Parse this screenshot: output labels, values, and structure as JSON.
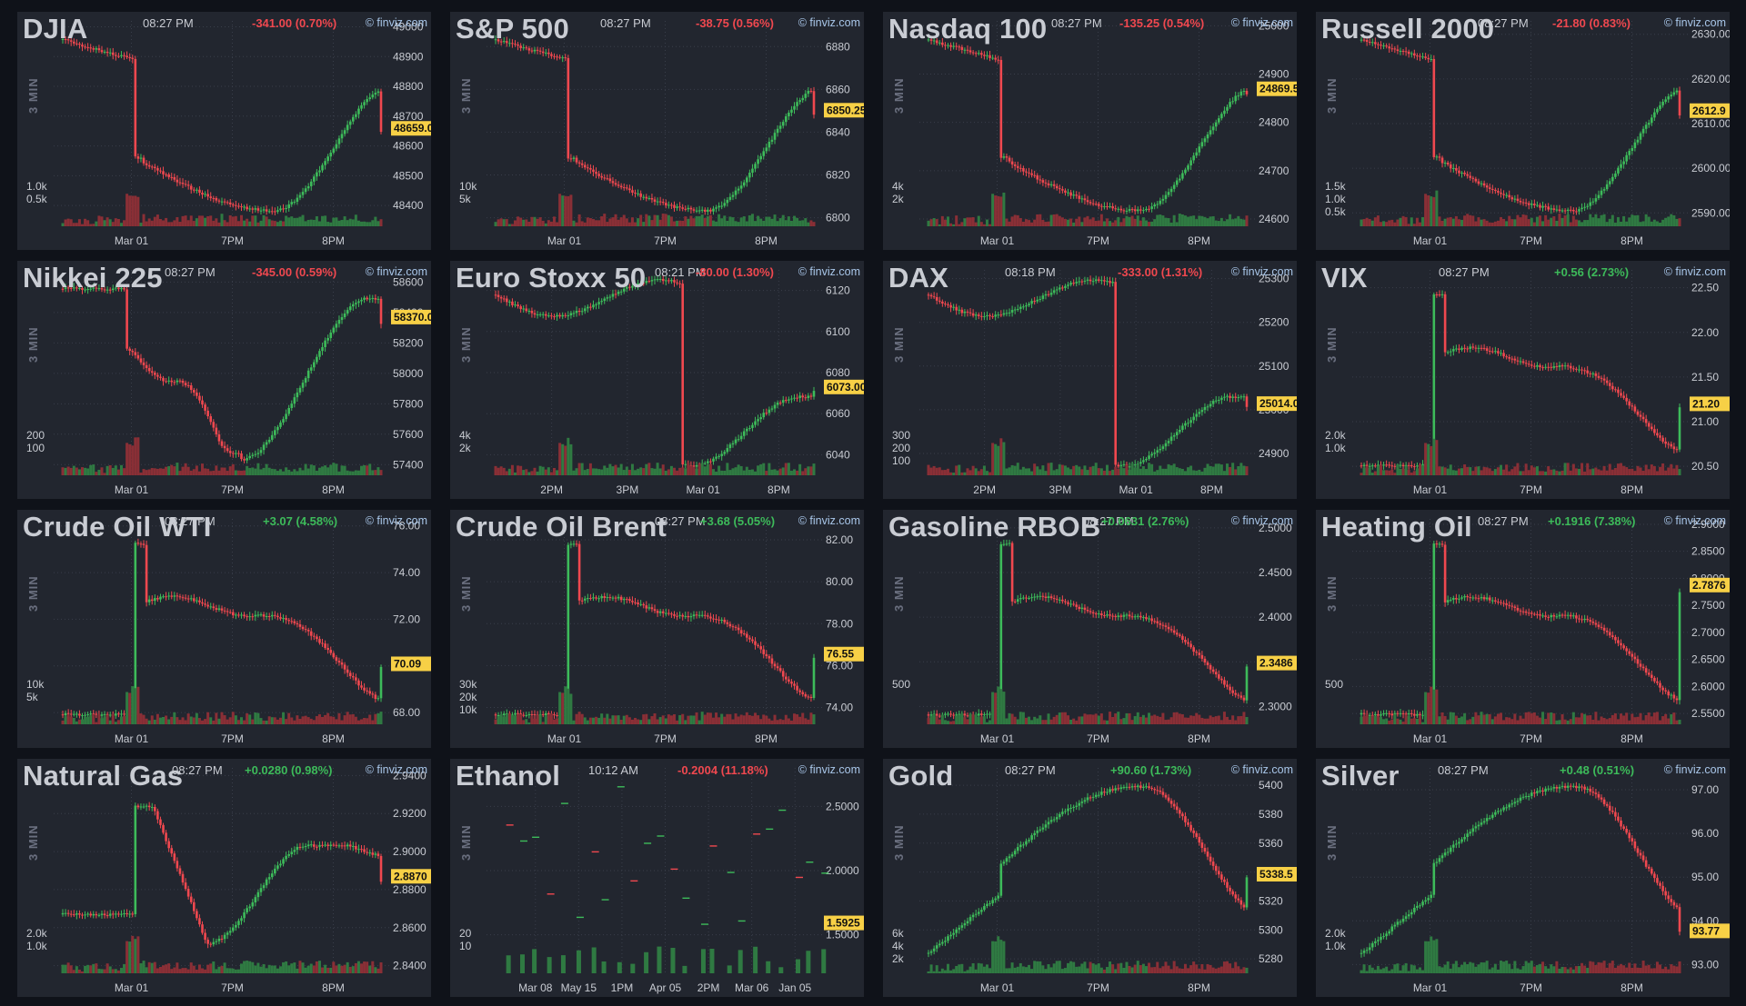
{
  "colors": {
    "panel_bg": "#22262f",
    "page_bg": "#0f1219",
    "up": "#3dbb5a",
    "down": "#f0484f",
    "grid": "#393e4a",
    "axis_text": "#c9ccd3",
    "price_tag": "#f7d046"
  },
  "interval_label": "3 MIN",
  "panels": [
    {
      "title": "DJIA",
      "time": "08:27 PM",
      "change": "-341.00 (0.70%)",
      "dir": "down",
      "source": "© finviz.com",
      "chart_data": {
        "type": "candlestick",
        "last": "48659.0",
        "last_value": 48659,
        "y_ticks": [
          "49000",
          "48900",
          "48800",
          "48700",
          "48600",
          "48500",
          "48400"
        ],
        "ylim": [
          48330,
          49020
        ],
        "x_ticks": [
          "Mar 01",
          "7PM",
          "8PM"
        ],
        "volume_ticks": [
          "1.0k",
          "0.5k"
        ],
        "shape": "dip"
      }
    },
    {
      "title": "S&P 500",
      "time": "08:27 PM",
      "change": "-38.75 (0.56%)",
      "dir": "down",
      "source": "© finviz.com",
      "chart_data": {
        "type": "candlestick",
        "last": "6850.25",
        "last_value": 6850.25,
        "y_ticks": [
          "6880",
          "6860",
          "6840",
          "6820",
          "6800"
        ],
        "ylim": [
          6796,
          6892
        ],
        "x_ticks": [
          "Mar 01",
          "7PM",
          "8PM"
        ],
        "volume_ticks": [
          "10k",
          "5k"
        ],
        "shape": "dip"
      }
    },
    {
      "title": "Nasdaq 100",
      "time": "08:27 PM",
      "change": "-135.25 (0.54%)",
      "dir": "down",
      "source": "© finviz.com",
      "chart_data": {
        "type": "candlestick",
        "last": "24869.5",
        "last_value": 24869.5,
        "y_ticks": [
          "25000",
          "24900",
          "24800",
          "24700",
          "24600"
        ],
        "ylim": [
          24585,
          25010
        ],
        "x_ticks": [
          "Mar 01",
          "7PM",
          "8PM"
        ],
        "volume_ticks": [
          "4k",
          "2k"
        ],
        "shape": "dip"
      }
    },
    {
      "title": "Russell 2000",
      "time": "08:27 PM",
      "change": "-21.80 (0.83%)",
      "dir": "down",
      "source": "© finviz.com",
      "chart_data": {
        "type": "candlestick",
        "last": "2612.9",
        "last_value": 2612.9,
        "y_ticks": [
          "2630.00",
          "2620.00",
          "2610.00",
          "2600.00",
          "2590.00"
        ],
        "ylim": [
          2587,
          2633
        ],
        "x_ticks": [
          "Mar 01",
          "7PM",
          "8PM"
        ],
        "volume_ticks": [
          "1.5k",
          "1.0k",
          "0.5k"
        ],
        "shape": "dip"
      }
    },
    {
      "title": "Nikkei 225",
      "time": "08:27 PM",
      "change": "-345.00 (0.59%)",
      "dir": "down",
      "source": "© finviz.com",
      "chart_data": {
        "type": "candlestick",
        "last": "58370.0",
        "last_value": 58370,
        "y_ticks": [
          "58600",
          "58400",
          "58200",
          "58000",
          "57800",
          "57600",
          "57400"
        ],
        "ylim": [
          57330,
          58680
        ],
        "x_ticks": [
          "Mar 01",
          "7PM",
          "8PM"
        ],
        "volume_ticks": [
          "200",
          "100"
        ],
        "shape": "vdip"
      }
    },
    {
      "title": "Euro Stoxx 50",
      "time": "08:21 PM",
      "change": "-80.00 (1.30%)",
      "dir": "down",
      "source": "© finviz.com",
      "chart_data": {
        "type": "candlestick",
        "last": "6073.00",
        "last_value": 6073,
        "y_ticks": [
          "6120",
          "6100",
          "6080",
          "6060",
          "6040"
        ],
        "ylim": [
          6030,
          6130
        ],
        "x_ticks": [
          "2PM",
          "3PM",
          "Mar 01",
          "8PM"
        ],
        "volume_ticks": [
          "4k",
          "2k"
        ],
        "shape": "gapdown"
      }
    },
    {
      "title": "DAX",
      "time": "08:18 PM",
      "change": "-333.00 (1.31%)",
      "dir": "down",
      "source": "© finviz.com",
      "chart_data": {
        "type": "candlestick",
        "last": "25014.0",
        "last_value": 25014,
        "y_ticks": [
          "25300",
          "25200",
          "25100",
          "25000",
          "24900"
        ],
        "ylim": [
          24850,
          25320
        ],
        "x_ticks": [
          "2PM",
          "3PM",
          "Mar 01",
          "8PM"
        ],
        "volume_ticks": [
          "300",
          "200",
          "100"
        ],
        "shape": "gapdown"
      }
    },
    {
      "title": "VIX",
      "time": "08:27 PM",
      "change": "+0.56 (2.73%)",
      "dir": "up",
      "source": "© finviz.com",
      "chart_data": {
        "type": "candlestick",
        "last": "21.20",
        "last_value": 21.2,
        "y_ticks": [
          "22.50",
          "22.00",
          "21.50",
          "21.00",
          "20.50"
        ],
        "ylim": [
          20.4,
          22.7
        ],
        "x_ticks": [
          "Mar 01",
          "7PM",
          "8PM"
        ],
        "volume_ticks": [
          "2.0k",
          "1.0k"
        ],
        "shape": "spikedown"
      }
    },
    {
      "title": "Crude Oil WTI",
      "time": "08:27 PM",
      "change": "+3.07 (4.58%)",
      "dir": "up",
      "source": "© finviz.com",
      "chart_data": {
        "type": "candlestick",
        "last": "70.09",
        "last_value": 70.09,
        "y_ticks": [
          "76.00",
          "74.00",
          "72.00",
          "70.00",
          "68.00"
        ],
        "ylim": [
          67.5,
          76.3
        ],
        "x_ticks": [
          "Mar 01",
          "7PM",
          "8PM"
        ],
        "volume_ticks": [
          "10k",
          "5k"
        ],
        "shape": "spikedown"
      }
    },
    {
      "title": "Crude Oil Brent",
      "time": "08:27 PM",
      "change": "+3.68 (5.05%)",
      "dir": "up",
      "source": "© finviz.com",
      "chart_data": {
        "type": "candlestick",
        "last": "76.55",
        "last_value": 76.55,
        "y_ticks": [
          "82.00",
          "80.00",
          "78.00",
          "76.00",
          "74.00"
        ],
        "ylim": [
          73.2,
          83.0
        ],
        "x_ticks": [
          "Mar 01",
          "7PM",
          "8PM"
        ],
        "volume_ticks": [
          "30k",
          "20k",
          "10k"
        ],
        "shape": "spikedown"
      }
    },
    {
      "title": "Gasoline RBOB",
      "time": "08:27 PM",
      "change": "+0.0631 (2.76%)",
      "dir": "up",
      "source": "© finviz.com",
      "chart_data": {
        "type": "candlestick",
        "last": "2.3486",
        "last_value": 2.3486,
        "y_ticks": [
          "2.5000",
          "2.4500",
          "2.4000",
          "2.3500",
          "2.3000"
        ],
        "ylim": [
          2.28,
          2.51
        ],
        "x_ticks": [
          "Mar 01",
          "7PM",
          "8PM"
        ],
        "volume_ticks": [
          "500"
        ],
        "shape": "spikedown"
      }
    },
    {
      "title": "Heating Oil",
      "time": "08:27 PM",
      "change": "+0.1916 (7.38%)",
      "dir": "up",
      "source": "© finviz.com",
      "chart_data": {
        "type": "candlestick",
        "last": "2.7876",
        "last_value": 2.7876,
        "y_ticks": [
          "2.9000",
          "2.8500",
          "2.8000",
          "2.7500",
          "2.7000",
          "2.6500",
          "2.6000",
          "2.5500"
        ],
        "ylim": [
          2.53,
          2.91
        ],
        "x_ticks": [
          "Mar 01",
          "7PM",
          "8PM"
        ],
        "volume_ticks": [
          "500"
        ],
        "shape": "spikedown"
      }
    },
    {
      "title": "Natural Gas",
      "time": "08:27 PM",
      "change": "+0.0280 (0.98%)",
      "dir": "up",
      "source": "© finviz.com",
      "chart_data": {
        "type": "candlestick",
        "last": "2.8870",
        "last_value": 2.887,
        "y_ticks": [
          "2.9400",
          "2.9200",
          "2.9000",
          "2.8800",
          "2.8600",
          "2.8400"
        ],
        "ylim": [
          2.836,
          2.944
        ],
        "x_ticks": [
          "Mar 01",
          "7PM",
          "8PM"
        ],
        "volume_ticks": [
          "2.0k",
          "1.0k"
        ],
        "shape": "dipup"
      }
    },
    {
      "title": "Ethanol",
      "time": "10:12 AM",
      "change": "-0.2004 (11.18%)",
      "dir": "down",
      "source": "© finviz.com",
      "chart_data": {
        "type": "candlestick",
        "last": "1.5925",
        "last_value": 1.5925,
        "y_ticks": [
          "2.5000",
          "2.0000",
          "1.5000"
        ],
        "ylim": [
          1.2,
          2.8
        ],
        "x_ticks": [
          "Mar 08",
          "May 15",
          "1PM",
          "Apr 05",
          "2PM",
          "Mar 06",
          "Jan 05"
        ],
        "volume_ticks": [
          "20",
          "10"
        ],
        "shape": "sparse"
      }
    },
    {
      "title": "Gold",
      "time": "08:27 PM",
      "change": "+90.60 (1.73%)",
      "dir": "up",
      "source": "© finviz.com",
      "chart_data": {
        "type": "candlestick",
        "last": "5338.5",
        "last_value": 5338.5,
        "y_ticks": [
          "5400",
          "5380",
          "5360",
          "5340",
          "5320",
          "5300",
          "5280"
        ],
        "ylim": [
          5270,
          5412
        ],
        "x_ticks": [
          "Mar 01",
          "7PM",
          "8PM"
        ],
        "volume_ticks": [
          "6k",
          "4k",
          "2k"
        ],
        "shape": "hump"
      }
    },
    {
      "title": "Silver",
      "time": "08:27 PM",
      "change": "+0.48 (0.51%)",
      "dir": "up",
      "source": "© finviz.com",
      "chart_data": {
        "type": "candlestick",
        "last": "93.77",
        "last_value": 93.77,
        "y_ticks": [
          "97.00",
          "96.00",
          "95.00",
          "94.00",
          "93.00"
        ],
        "ylim": [
          92.8,
          97.5
        ],
        "x_ticks": [
          "Mar 01",
          "7PM",
          "8PM"
        ],
        "volume_ticks": [
          "2.0k",
          "1.0k"
        ],
        "shape": "hump"
      }
    }
  ]
}
